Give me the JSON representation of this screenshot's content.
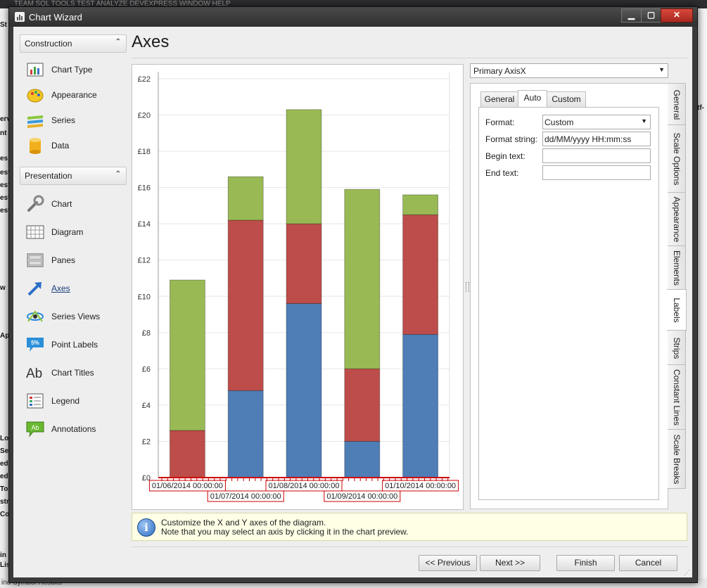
{
  "window": {
    "title": "Chart Wizard",
    "minimize": "▁",
    "maximize": "▢",
    "close": "✕"
  },
  "background": {
    "menu": "TEAM    SQL    TOOLS    TEST    ANALYZE    DEVEXPRESS    WINDOW    HELP",
    "left_labels": [
      "St",
      "erv",
      "nt",
      "es_",
      "est",
      "est",
      "est",
      "est",
      "w",
      "Ap",
      "Los",
      "Se",
      "ed",
      "ed",
      "To",
      "str",
      "Co",
      "in",
      "Lis"
    ],
    "right_label": "tf-",
    "bottom_text": "ind Symbol Results"
  },
  "sidebar": {
    "groups": [
      {
        "label": "Construction",
        "chevron": "⌃",
        "items": [
          {
            "label": "Chart Type",
            "icon": "chart-type-icon"
          },
          {
            "label": "Appearance",
            "icon": "appearance-palette-icon"
          },
          {
            "label": "Series",
            "icon": "series-icon"
          },
          {
            "label": "Data",
            "icon": "data-cylinder-icon"
          }
        ]
      },
      {
        "label": "Presentation",
        "chevron": "⌃",
        "items": [
          {
            "label": "Chart",
            "icon": "wrench-icon"
          },
          {
            "label": "Diagram",
            "icon": "diagram-grid-icon"
          },
          {
            "label": "Panes",
            "icon": "panes-icon"
          },
          {
            "label": "Axes",
            "icon": "axes-arrow-icon",
            "active": true
          },
          {
            "label": "Series Views",
            "icon": "series-views-icon"
          },
          {
            "label": "Point Labels",
            "icon": "point-labels-icon",
            "badge": "5%"
          },
          {
            "label": "Chart Titles",
            "icon": "chart-titles-icon",
            "glyph": "Ab"
          },
          {
            "label": "Legend",
            "icon": "legend-icon"
          },
          {
            "label": "Annotations",
            "icon": "annotations-icon",
            "glyph": "Ab"
          }
        ]
      }
    ]
  },
  "page": {
    "heading": "Axes"
  },
  "axis_selector": {
    "value": "Primary AxisX",
    "arrow": "▼"
  },
  "tabs": [
    {
      "label": "General",
      "active": false
    },
    {
      "label": "Auto",
      "active": true
    },
    {
      "label": "Custom",
      "active": false
    }
  ],
  "form": {
    "format_label": "Format:",
    "format_value": "Custom",
    "format_arrow": "▼",
    "format_string_label": "Format string:",
    "format_string_value": "dd/MM/yyyy HH:mm:ss",
    "begin_text_label": "Begin text:",
    "begin_text_value": "",
    "end_text_label": "End text:",
    "end_text_value": ""
  },
  "vertical_tabs": [
    {
      "label": "General",
      "active": false
    },
    {
      "label": "Scale Options",
      "active": false
    },
    {
      "label": "Appearance",
      "active": false
    },
    {
      "label": "Elements",
      "active": false
    },
    {
      "label": "Labels",
      "active": true
    },
    {
      "label": "Strips",
      "active": false
    },
    {
      "label": "Constant Lines",
      "active": false
    },
    {
      "label": "Scale Breaks",
      "active": false
    }
  ],
  "info": {
    "icon": "info-icon",
    "glyph": "i",
    "line1": "Customize the X and Y axes of the diagram.",
    "line2": "Note that you may select an axis by clicking it in the chart preview."
  },
  "buttons": {
    "back": "<< Previous",
    "next": "Next >>",
    "finish": "Finish",
    "cancel": "Cancel"
  },
  "chart_data": {
    "type": "bar",
    "stacked": true,
    "categories": [
      "01/06/2014 00:00:00",
      "01/07/2014 00:00:00",
      "01/08/2014 00:00:00",
      "01/09/2014 00:00:00",
      "01/10/2014 00:00:00"
    ],
    "series": [
      {
        "values": [
          0,
          4.8,
          9.6,
          2.0,
          7.9
        ],
        "color": "#4f7db5"
      },
      {
        "values": [
          2.6,
          9.4,
          4.4,
          4.0,
          6.6
        ],
        "color": "#bd4d4a"
      },
      {
        "values": [
          8.3,
          2.4,
          6.3,
          9.9,
          1.1
        ],
        "color": "#98b954"
      }
    ],
    "ylim": [
      0,
      22
    ],
    "y_ticks": [
      "£0",
      "£2",
      "£4",
      "£6",
      "£8",
      "£10",
      "£12",
      "£14",
      "£16",
      "£18",
      "£20",
      "£22"
    ],
    "grid": true,
    "x_axis_color": "#cc0000"
  }
}
